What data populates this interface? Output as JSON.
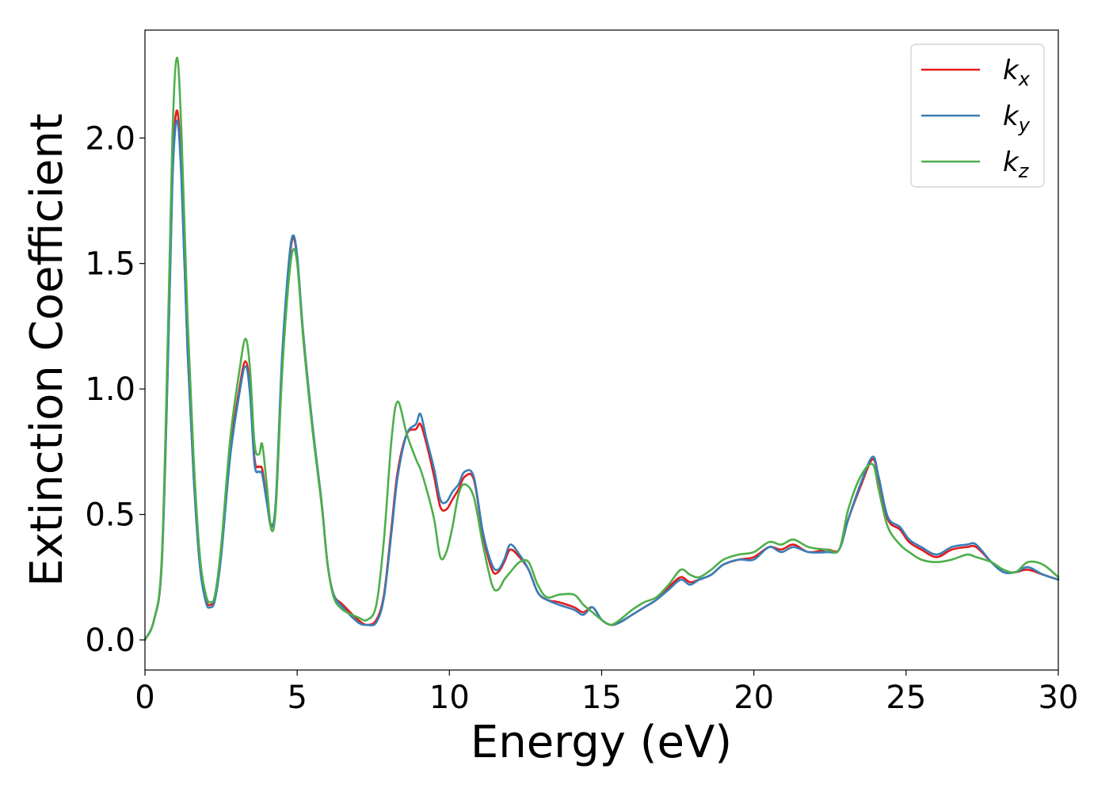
{
  "chart_data": {
    "type": "line",
    "title": "",
    "xlabel": "Energy (eV)",
    "ylabel": "Extinction Coefficient",
    "xlim": [
      0,
      30
    ],
    "ylim": [
      -0.12,
      2.43
    ],
    "xticks": [
      0,
      5,
      10,
      15,
      20,
      25,
      30
    ],
    "xtick_labels": [
      "0",
      "5",
      "10",
      "15",
      "20",
      "25",
      "30"
    ],
    "yticks": [
      0.0,
      0.5,
      1.0,
      1.5,
      2.0
    ],
    "ytick_labels": [
      "0.0",
      "0.5",
      "1.0",
      "1.5",
      "2.0"
    ],
    "grid": false,
    "legend_position": "top-right",
    "series": [
      {
        "name": "kx",
        "legend_base": "k",
        "legend_sub": "x",
        "color": "#e41a1c",
        "points": [
          [
            0,
            0
          ],
          [
            0.3,
            0.08
          ],
          [
            0.55,
            0.3
          ],
          [
            0.75,
            1.1
          ],
          [
            0.9,
            1.85
          ],
          [
            1.05,
            2.11
          ],
          [
            1.2,
            1.85
          ],
          [
            1.4,
            1.15
          ],
          [
            1.6,
            0.65
          ],
          [
            1.8,
            0.3
          ],
          [
            2.0,
            0.16
          ],
          [
            2.15,
            0.14
          ],
          [
            2.3,
            0.17
          ],
          [
            2.5,
            0.35
          ],
          [
            2.8,
            0.75
          ],
          [
            3.1,
            1.0
          ],
          [
            3.3,
            1.11
          ],
          [
            3.45,
            1.0
          ],
          [
            3.6,
            0.72
          ],
          [
            3.75,
            0.69
          ],
          [
            3.85,
            0.68
          ],
          [
            4.0,
            0.56
          ],
          [
            4.15,
            0.46
          ],
          [
            4.3,
            0.55
          ],
          [
            4.5,
            1.1
          ],
          [
            4.7,
            1.45
          ],
          [
            4.85,
            1.6
          ],
          [
            5.0,
            1.52
          ],
          [
            5.2,
            1.2
          ],
          [
            5.5,
            0.85
          ],
          [
            5.8,
            0.55
          ],
          [
            6.0,
            0.3
          ],
          [
            6.2,
            0.18
          ],
          [
            6.5,
            0.14
          ],
          [
            7.0,
            0.08
          ],
          [
            7.3,
            0.06
          ],
          [
            7.6,
            0.08
          ],
          [
            7.85,
            0.18
          ],
          [
            8.1,
            0.45
          ],
          [
            8.3,
            0.67
          ],
          [
            8.6,
            0.82
          ],
          [
            8.9,
            0.84
          ],
          [
            9.05,
            0.86
          ],
          [
            9.25,
            0.78
          ],
          [
            9.5,
            0.65
          ],
          [
            9.7,
            0.53
          ],
          [
            9.9,
            0.52
          ],
          [
            10.1,
            0.56
          ],
          [
            10.3,
            0.6
          ],
          [
            10.5,
            0.65
          ],
          [
            10.8,
            0.64
          ],
          [
            11.1,
            0.42
          ],
          [
            11.4,
            0.28
          ],
          [
            11.6,
            0.27
          ],
          [
            11.8,
            0.31
          ],
          [
            12.0,
            0.36
          ],
          [
            12.3,
            0.33
          ],
          [
            12.6,
            0.28
          ],
          [
            12.9,
            0.19
          ],
          [
            13.2,
            0.16
          ],
          [
            13.6,
            0.15
          ],
          [
            14.1,
            0.13
          ],
          [
            14.4,
            0.11
          ],
          [
            14.7,
            0.13
          ],
          [
            15.0,
            0.08
          ],
          [
            15.3,
            0.06
          ],
          [
            15.6,
            0.07
          ],
          [
            16.0,
            0.1
          ],
          [
            16.4,
            0.13
          ],
          [
            16.8,
            0.16
          ],
          [
            17.2,
            0.21
          ],
          [
            17.6,
            0.25
          ],
          [
            17.9,
            0.23
          ],
          [
            18.2,
            0.24
          ],
          [
            18.6,
            0.26
          ],
          [
            19.0,
            0.3
          ],
          [
            19.5,
            0.32
          ],
          [
            20.0,
            0.33
          ],
          [
            20.5,
            0.37
          ],
          [
            20.9,
            0.36
          ],
          [
            21.3,
            0.38
          ],
          [
            21.8,
            0.35
          ],
          [
            22.4,
            0.36
          ],
          [
            22.8,
            0.36
          ],
          [
            23.1,
            0.48
          ],
          [
            23.5,
            0.61
          ],
          [
            23.9,
            0.72
          ],
          [
            24.1,
            0.64
          ],
          [
            24.4,
            0.48
          ],
          [
            24.8,
            0.44
          ],
          [
            25.1,
            0.39
          ],
          [
            25.5,
            0.36
          ],
          [
            26.0,
            0.33
          ],
          [
            26.5,
            0.36
          ],
          [
            27.0,
            0.37
          ],
          [
            27.3,
            0.37
          ],
          [
            27.8,
            0.31
          ],
          [
            28.2,
            0.27
          ],
          [
            28.6,
            0.27
          ],
          [
            29.0,
            0.28
          ],
          [
            29.5,
            0.26
          ],
          [
            30.0,
            0.24
          ]
        ]
      },
      {
        "name": "ky",
        "legend_base": "k",
        "legend_sub": "y",
        "color": "#377eb8",
        "points": [
          [
            0,
            0
          ],
          [
            0.3,
            0.08
          ],
          [
            0.55,
            0.3
          ],
          [
            0.75,
            1.08
          ],
          [
            0.9,
            1.82
          ],
          [
            1.05,
            2.07
          ],
          [
            1.2,
            1.83
          ],
          [
            1.4,
            1.15
          ],
          [
            1.6,
            0.65
          ],
          [
            1.8,
            0.3
          ],
          [
            2.0,
            0.15
          ],
          [
            2.15,
            0.13
          ],
          [
            2.3,
            0.16
          ],
          [
            2.5,
            0.33
          ],
          [
            2.8,
            0.73
          ],
          [
            3.1,
            0.98
          ],
          [
            3.3,
            1.09
          ],
          [
            3.45,
            0.98
          ],
          [
            3.6,
            0.7
          ],
          [
            3.75,
            0.67
          ],
          [
            3.85,
            0.66
          ],
          [
            4.0,
            0.55
          ],
          [
            4.15,
            0.45
          ],
          [
            4.3,
            0.56
          ],
          [
            4.5,
            1.12
          ],
          [
            4.7,
            1.47
          ],
          [
            4.85,
            1.61
          ],
          [
            5.0,
            1.53
          ],
          [
            5.2,
            1.22
          ],
          [
            5.5,
            0.86
          ],
          [
            5.8,
            0.55
          ],
          [
            6.0,
            0.3
          ],
          [
            6.2,
            0.18
          ],
          [
            6.5,
            0.13
          ],
          [
            7.0,
            0.07
          ],
          [
            7.3,
            0.06
          ],
          [
            7.6,
            0.07
          ],
          [
            7.85,
            0.17
          ],
          [
            8.1,
            0.43
          ],
          [
            8.3,
            0.65
          ],
          [
            8.6,
            0.82
          ],
          [
            8.9,
            0.86
          ],
          [
            9.05,
            0.9
          ],
          [
            9.25,
            0.8
          ],
          [
            9.5,
            0.68
          ],
          [
            9.7,
            0.56
          ],
          [
            9.9,
            0.55
          ],
          [
            10.1,
            0.59
          ],
          [
            10.3,
            0.62
          ],
          [
            10.5,
            0.67
          ],
          [
            10.8,
            0.65
          ],
          [
            11.1,
            0.43
          ],
          [
            11.4,
            0.3
          ],
          [
            11.6,
            0.28
          ],
          [
            11.8,
            0.32
          ],
          [
            12.0,
            0.38
          ],
          [
            12.3,
            0.34
          ],
          [
            12.6,
            0.28
          ],
          [
            12.9,
            0.19
          ],
          [
            13.2,
            0.16
          ],
          [
            13.6,
            0.14
          ],
          [
            14.1,
            0.12
          ],
          [
            14.4,
            0.1
          ],
          [
            14.7,
            0.13
          ],
          [
            15.0,
            0.08
          ],
          [
            15.3,
            0.06
          ],
          [
            15.6,
            0.07
          ],
          [
            16.0,
            0.1
          ],
          [
            16.4,
            0.13
          ],
          [
            16.8,
            0.16
          ],
          [
            17.2,
            0.2
          ],
          [
            17.6,
            0.24
          ],
          [
            17.9,
            0.22
          ],
          [
            18.2,
            0.24
          ],
          [
            18.6,
            0.26
          ],
          [
            19.0,
            0.3
          ],
          [
            19.5,
            0.32
          ],
          [
            20.0,
            0.32
          ],
          [
            20.5,
            0.37
          ],
          [
            20.9,
            0.35
          ],
          [
            21.3,
            0.37
          ],
          [
            21.8,
            0.35
          ],
          [
            22.4,
            0.35
          ],
          [
            22.8,
            0.36
          ],
          [
            23.1,
            0.48
          ],
          [
            23.5,
            0.62
          ],
          [
            23.9,
            0.73
          ],
          [
            24.1,
            0.65
          ],
          [
            24.4,
            0.49
          ],
          [
            24.8,
            0.45
          ],
          [
            25.1,
            0.4
          ],
          [
            25.5,
            0.37
          ],
          [
            26.0,
            0.34
          ],
          [
            26.5,
            0.37
          ],
          [
            27.0,
            0.38
          ],
          [
            27.3,
            0.38
          ],
          [
            27.8,
            0.31
          ],
          [
            28.2,
            0.27
          ],
          [
            28.6,
            0.27
          ],
          [
            29.0,
            0.29
          ],
          [
            29.5,
            0.26
          ],
          [
            30.0,
            0.24
          ]
        ]
      },
      {
        "name": "kz",
        "legend_base": "k",
        "legend_sub": "z",
        "color": "#4daf4a",
        "points": [
          [
            0,
            0
          ],
          [
            0.3,
            0.08
          ],
          [
            0.55,
            0.32
          ],
          [
            0.75,
            1.2
          ],
          [
            0.9,
            2.0
          ],
          [
            1.05,
            2.32
          ],
          [
            1.2,
            2.02
          ],
          [
            1.4,
            1.28
          ],
          [
            1.6,
            0.72
          ],
          [
            1.8,
            0.34
          ],
          [
            2.0,
            0.18
          ],
          [
            2.15,
            0.15
          ],
          [
            2.3,
            0.18
          ],
          [
            2.5,
            0.37
          ],
          [
            2.8,
            0.8
          ],
          [
            3.1,
            1.07
          ],
          [
            3.3,
            1.2
          ],
          [
            3.45,
            1.08
          ],
          [
            3.6,
            0.78
          ],
          [
            3.75,
            0.74
          ],
          [
            3.85,
            0.78
          ],
          [
            4.0,
            0.62
          ],
          [
            4.15,
            0.44
          ],
          [
            4.3,
            0.53
          ],
          [
            4.5,
            1.05
          ],
          [
            4.7,
            1.4
          ],
          [
            4.85,
            1.55
          ],
          [
            5.0,
            1.5
          ],
          [
            5.2,
            1.2
          ],
          [
            5.5,
            0.84
          ],
          [
            5.8,
            0.54
          ],
          [
            6.0,
            0.3
          ],
          [
            6.2,
            0.17
          ],
          [
            6.5,
            0.12
          ],
          [
            7.0,
            0.09
          ],
          [
            7.3,
            0.08
          ],
          [
            7.6,
            0.14
          ],
          [
            7.85,
            0.4
          ],
          [
            8.1,
            0.8
          ],
          [
            8.3,
            0.95
          ],
          [
            8.6,
            0.82
          ],
          [
            8.9,
            0.72
          ],
          [
            9.05,
            0.68
          ],
          [
            9.25,
            0.6
          ],
          [
            9.5,
            0.48
          ],
          [
            9.7,
            0.33
          ],
          [
            9.9,
            0.35
          ],
          [
            10.1,
            0.45
          ],
          [
            10.3,
            0.58
          ],
          [
            10.5,
            0.62
          ],
          [
            10.8,
            0.57
          ],
          [
            11.1,
            0.38
          ],
          [
            11.4,
            0.22
          ],
          [
            11.6,
            0.2
          ],
          [
            11.8,
            0.24
          ],
          [
            12.0,
            0.27
          ],
          [
            12.3,
            0.31
          ],
          [
            12.6,
            0.31
          ],
          [
            12.9,
            0.22
          ],
          [
            13.2,
            0.17
          ],
          [
            13.6,
            0.18
          ],
          [
            14.1,
            0.18
          ],
          [
            14.4,
            0.14
          ],
          [
            14.7,
            0.11
          ],
          [
            15.0,
            0.08
          ],
          [
            15.3,
            0.06
          ],
          [
            15.6,
            0.08
          ],
          [
            16.0,
            0.12
          ],
          [
            16.4,
            0.15
          ],
          [
            16.8,
            0.17
          ],
          [
            17.2,
            0.22
          ],
          [
            17.6,
            0.28
          ],
          [
            17.9,
            0.26
          ],
          [
            18.2,
            0.25
          ],
          [
            18.6,
            0.28
          ],
          [
            19.0,
            0.32
          ],
          [
            19.5,
            0.34
          ],
          [
            20.0,
            0.35
          ],
          [
            20.5,
            0.39
          ],
          [
            20.9,
            0.38
          ],
          [
            21.3,
            0.4
          ],
          [
            21.8,
            0.37
          ],
          [
            22.4,
            0.36
          ],
          [
            22.8,
            0.36
          ],
          [
            23.1,
            0.52
          ],
          [
            23.5,
            0.65
          ],
          [
            23.9,
            0.7
          ],
          [
            24.1,
            0.6
          ],
          [
            24.4,
            0.45
          ],
          [
            24.8,
            0.38
          ],
          [
            25.1,
            0.35
          ],
          [
            25.5,
            0.32
          ],
          [
            26.0,
            0.31
          ],
          [
            26.5,
            0.32
          ],
          [
            27.0,
            0.34
          ],
          [
            27.3,
            0.33
          ],
          [
            27.8,
            0.31
          ],
          [
            28.2,
            0.28
          ],
          [
            28.6,
            0.27
          ],
          [
            29.0,
            0.31
          ],
          [
            29.5,
            0.3
          ],
          [
            30.0,
            0.25
          ]
        ]
      }
    ]
  }
}
